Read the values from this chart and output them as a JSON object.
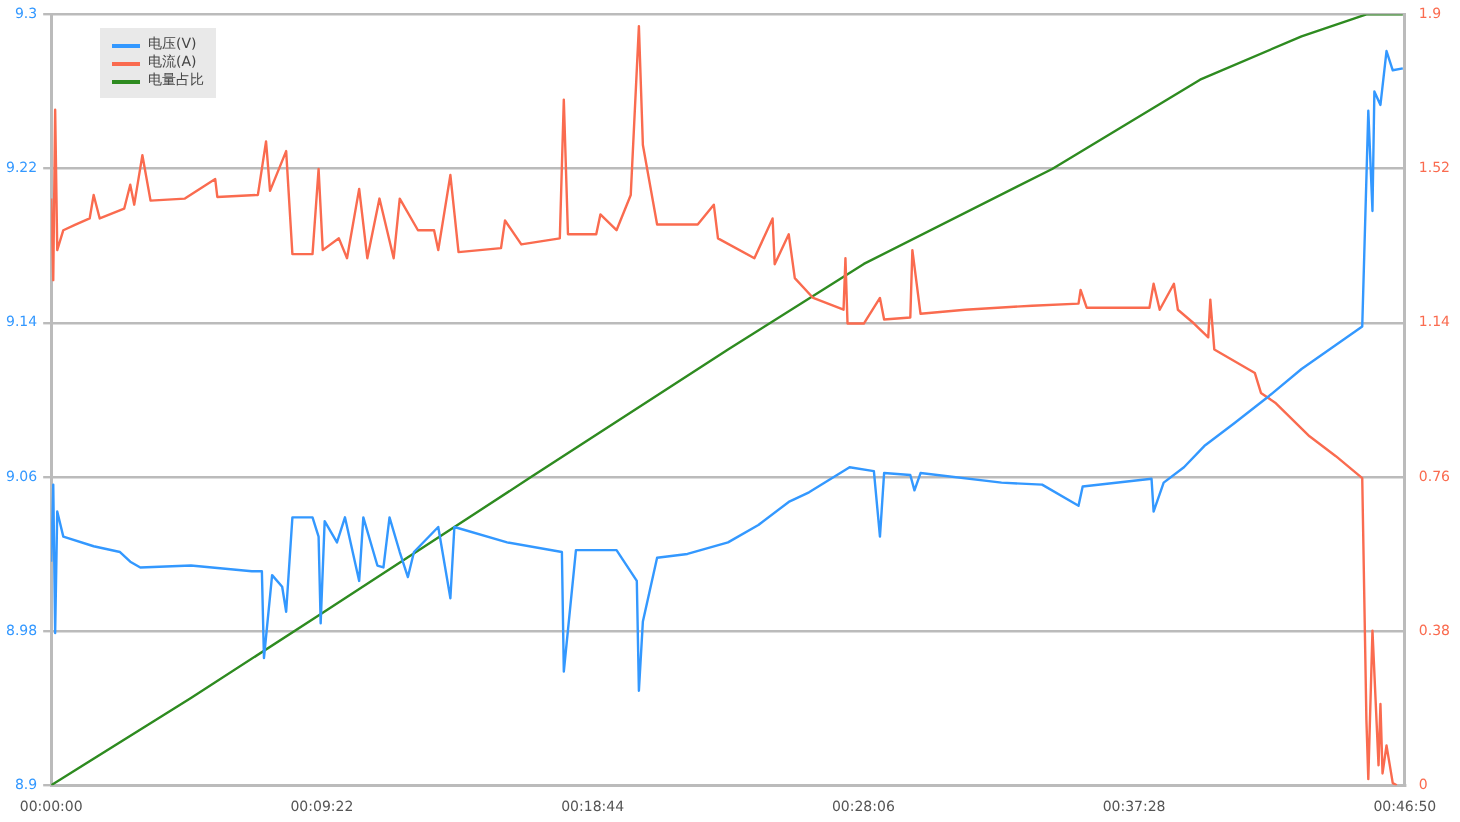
{
  "chart_data": {
    "type": "line",
    "xlim": [
      0,
      0.78056
    ],
    "xticks": [
      {
        "value": 0,
        "label": "00:00:00"
      },
      {
        "value": 0.15611,
        "label": "00:09:22"
      },
      {
        "value": 0.31222,
        "label": "00:18:44"
      },
      {
        "value": 0.46833,
        "label": "00:28:06"
      },
      {
        "value": 0.62444,
        "label": "00:37:28"
      },
      {
        "value": 0.78056,
        "label": "00:46:50"
      }
    ],
    "ylim": [
      8.9,
      9.3
    ],
    "yticks": [
      8.9,
      8.98,
      9.06,
      9.14,
      9.22,
      9.3
    ],
    "y2lim": [
      0,
      1.9
    ],
    "y2ticks": [
      0,
      0.38,
      0.76,
      1.14,
      1.52,
      1.9
    ],
    "grid": "y",
    "legend": "top left",
    "marker": "none",
    "line_style": "solid",
    "series": [
      {
        "name": "电压(V)",
        "color": "#3398ff",
        "x": [
          0,
          0.0012,
          0.0023,
          0.0035,
          0.007,
          0.0245,
          0.0397,
          0.0456,
          0.0514,
          0.0806,
          0.1157,
          0.1215,
          0.1227,
          0.1274,
          0.1332,
          0.1355,
          0.1391,
          0.1507,
          0.1542,
          0.1554,
          0.1577,
          0.1648,
          0.1694,
          0.1776,
          0.18,
          0.1881,
          0.1916,
          0.1951,
          0.201,
          0.2057,
          0.2092,
          0.2232,
          0.2302,
          0.2325,
          0.2629,
          0.2945,
          0.2956,
          0.3026,
          0.326,
          0.3377,
          0.3389,
          0.3412,
          0.3494,
          0.3669,
          0.3903,
          0.4078,
          0.4253,
          0.437,
          0.4569,
          0.4604,
          0.4744,
          0.4779,
          0.4803,
          0.4954,
          0.4978,
          0.5013,
          0.548,
          0.5714,
          0.5924,
          0.5948,
          0.6345,
          0.6357,
          0.6415,
          0.6532,
          0.6649,
          0.6824,
          0.7023,
          0.721,
          0.756,
          0.7595,
          0.7619,
          0.763,
          0.7665,
          0.77,
          0.7736,
          0.7794
        ],
        "values": [
          9.016,
          9.056,
          8.979,
          9.042,
          9.029,
          9.024,
          9.021,
          9.016,
          9.013,
          9.014,
          9.011,
          9.011,
          8.966,
          9.009,
          9.003,
          8.99,
          9.039,
          9.039,
          9.029,
          8.984,
          9.037,
          9.026,
          9.039,
          9.006,
          9.039,
          9.014,
          9.013,
          9.039,
          9.021,
          9.008,
          9.021,
          9.034,
          8.997,
          9.034,
          9.026,
          9.021,
          8.959,
          9.022,
          9.022,
          9.006,
          8.949,
          8.985,
          9.018,
          9.02,
          9.026,
          9.035,
          9.047,
          9.052,
          9.063,
          9.065,
          9.063,
          9.029,
          9.062,
          9.061,
          9.053,
          9.062,
          9.057,
          9.056,
          9.045,
          9.055,
          9.059,
          9.042,
          9.057,
          9.065,
          9.076,
          9.088,
          9.102,
          9.116,
          9.138,
          9.25,
          9.198,
          9.26,
          9.253,
          9.281,
          9.271,
          9.272
        ]
      },
      {
        "name": "电流(A)",
        "color": "#fa6b4f",
        "axis": "y2",
        "x": [
          0,
          0.0012,
          0.0023,
          0.0035,
          0.007,
          0.014,
          0.0222,
          0.0245,
          0.028,
          0.0421,
          0.0456,
          0.0479,
          0.0526,
          0.0573,
          0.0771,
          0.0946,
          0.0958,
          0.1192,
          0.1239,
          0.1262,
          0.1355,
          0.1391,
          0.1507,
          0.1542,
          0.1566,
          0.1659,
          0.1706,
          0.1776,
          0.1823,
          0.1893,
          0.1975,
          0.201,
          0.2115,
          0.2208,
          0.2232,
          0.2302,
          0.2349,
          0.2594,
          0.2617,
          0.2711,
          0.2933,
          0.2956,
          0.298,
          0.3143,
          0.3167,
          0.326,
          0.3342,
          0.3389,
          0.3412,
          0.3494,
          0.3728,
          0.3821,
          0.3845,
          0.4055,
          0.416,
          0.4172,
          0.4253,
          0.4288,
          0.4394,
          0.4569,
          0.458,
          0.4592,
          0.4686,
          0.4779,
          0.4803,
          0.4954,
          0.4966,
          0.5013,
          0.527,
          0.5656,
          0.5924,
          0.5936,
          0.5971,
          0.6333,
          0.6357,
          0.6392,
          0.6474,
          0.6497,
          0.659,
          0.6672,
          0.6684,
          0.6707,
          0.6941,
          0.6976,
          0.7058,
          0.7256,
          0.7408,
          0.756,
          0.7584,
          0.7595,
          0.7619,
          0.7654,
          0.7665,
          0.7677,
          0.77,
          0.7736,
          0.7759
        ],
        "values": [
          1.446,
          1.245,
          1.665,
          1.319,
          1.368,
          1.382,
          1.397,
          1.455,
          1.397,
          1.421,
          1.48,
          1.431,
          1.553,
          1.441,
          1.446,
          1.494,
          1.45,
          1.455,
          1.587,
          1.465,
          1.563,
          1.309,
          1.309,
          1.519,
          1.319,
          1.348,
          1.299,
          1.47,
          1.299,
          1.446,
          1.299,
          1.446,
          1.368,
          1.368,
          1.319,
          1.504,
          1.314,
          1.324,
          1.392,
          1.333,
          1.348,
          1.69,
          1.358,
          1.358,
          1.407,
          1.368,
          1.455,
          1.871,
          1.578,
          1.382,
          1.382,
          1.431,
          1.348,
          1.299,
          1.397,
          1.284,
          1.358,
          1.25,
          1.201,
          1.172,
          1.299,
          1.138,
          1.138,
          1.201,
          1.148,
          1.153,
          1.319,
          1.162,
          1.172,
          1.182,
          1.187,
          1.221,
          1.177,
          1.177,
          1.236,
          1.172,
          1.236,
          1.172,
          1.138,
          1.104,
          1.197,
          1.074,
          1.016,
          0.967,
          0.943,
          0.86,
          0.811,
          0.757,
          0.161,
          0.015,
          0.381,
          0.049,
          0.2,
          0.029,
          0.098,
          0.005,
          0
        ]
      },
      {
        "name": "电量占比",
        "color": "#2e8b20",
        "axis": "y2",
        "x": [
          0,
          0.0806,
          0.1566,
          0.2758,
          0.3903,
          0.4686,
          0.5772,
          0.6625,
          0.721,
          0.7584,
          0.7794
        ],
        "values": [
          0,
          0.215,
          0.425,
          0.757,
          1.074,
          1.285,
          1.519,
          1.739,
          1.846,
          1.9,
          1.9
        ]
      }
    ]
  }
}
